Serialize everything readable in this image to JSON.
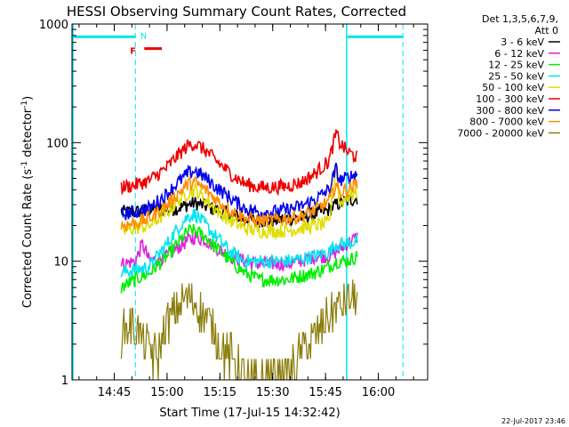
{
  "chart_data": {
    "type": "line",
    "title": "HESSI Observing Summary Count Rates, Corrected",
    "xlabel": "Start Time (17-Jul-15 14:32:42)",
    "ylabel_main": "Corrected Count Rate (s",
    "ylabel_sup1": "-1",
    "ylabel_mid": " detector",
    "ylabel_sup2": "-1",
    "ylabel_end": ")",
    "yscale": "log",
    "xlim": [
      "14:33",
      "16:14"
    ],
    "ylim": [
      1,
      1000
    ],
    "xticks": [
      "14:45",
      "15:00",
      "15:15",
      "15:30",
      "15:45",
      "16:00"
    ],
    "yticks": [
      "1",
      "10",
      "100",
      "1000"
    ],
    "legend_header": [
      "Det 1,3,5,6,7,9,",
      "Att 0"
    ],
    "legend_position": "right",
    "timestamp": "22-Jul-2017 23:46",
    "annotations": {
      "night_label": "N",
      "flag_label": "F",
      "night_intervals": [
        [
          "14:33",
          "14:51"
        ],
        [
          "15:51",
          "16:07"
        ]
      ],
      "night_level": 780,
      "flag_intervals": [
        [
          "14:52",
          "14:57"
        ]
      ],
      "flag_level": 620,
      "cyan_solid_markers": [
        "14:33",
        "15:51"
      ],
      "cyan_dashed_markers": [
        "14:51",
        "16:07"
      ]
    },
    "data_range": [
      "14:47",
      "15:54"
    ],
    "series": [
      {
        "name": "3 - 6 keV",
        "color": "#000000",
        "points": [
          [
            "14:47",
            26
          ],
          [
            "14:51",
            26
          ],
          [
            "14:55",
            27
          ],
          [
            "15:00",
            27
          ],
          [
            "15:03",
            28
          ],
          [
            "15:06",
            30
          ],
          [
            "15:08",
            31
          ],
          [
            "15:11",
            29
          ],
          [
            "15:14",
            27
          ],
          [
            "15:18",
            25
          ],
          [
            "15:22",
            23
          ],
          [
            "15:26",
            22
          ],
          [
            "15:30",
            22
          ],
          [
            "15:34",
            23
          ],
          [
            "15:38",
            23
          ],
          [
            "15:42",
            25
          ],
          [
            "15:46",
            27
          ],
          [
            "15:48",
            30
          ],
          [
            "15:51",
            32
          ],
          [
            "15:54",
            34
          ]
        ]
      },
      {
        "name": "6 - 12 keV",
        "color": "#e020e0",
        "points": [
          [
            "14:47",
            9.5
          ],
          [
            "14:51",
            10
          ],
          [
            "14:53",
            14
          ],
          [
            "14:55",
            10
          ],
          [
            "15:00",
            11
          ],
          [
            "15:03",
            13
          ],
          [
            "15:06",
            15
          ],
          [
            "15:08",
            16
          ],
          [
            "15:11",
            15
          ],
          [
            "15:14",
            13
          ],
          [
            "15:18",
            11
          ],
          [
            "15:22",
            10
          ],
          [
            "15:26",
            9.5
          ],
          [
            "15:30",
            9.5
          ],
          [
            "15:34",
            9.5
          ],
          [
            "15:38",
            10
          ],
          [
            "15:42",
            11
          ],
          [
            "15:46",
            11
          ],
          [
            "15:48",
            12
          ],
          [
            "15:51",
            14
          ],
          [
            "15:54",
            16
          ]
        ]
      },
      {
        "name": "12 - 25 keV",
        "color": "#00ee00",
        "points": [
          [
            "14:47",
            6
          ],
          [
            "14:51",
            7
          ],
          [
            "14:55",
            8
          ],
          [
            "15:00",
            11
          ],
          [
            "15:03",
            14
          ],
          [
            "15:06",
            18
          ],
          [
            "15:08",
            18
          ],
          [
            "15:11",
            16
          ],
          [
            "15:14",
            13
          ],
          [
            "15:18",
            10
          ],
          [
            "15:22",
            8
          ],
          [
            "15:26",
            7
          ],
          [
            "15:30",
            7
          ],
          [
            "15:34",
            7
          ],
          [
            "15:38",
            7.5
          ],
          [
            "15:42",
            8
          ],
          [
            "15:46",
            9
          ],
          [
            "15:48",
            10
          ],
          [
            "15:51",
            10
          ],
          [
            "15:54",
            11
          ]
        ]
      },
      {
        "name": "25 - 50 keV",
        "color": "#00e5ee",
        "points": [
          [
            "14:47",
            8
          ],
          [
            "14:51",
            8.5
          ],
          [
            "14:55",
            9
          ],
          [
            "15:00",
            14
          ],
          [
            "15:03",
            19
          ],
          [
            "15:06",
            24
          ],
          [
            "15:08",
            25
          ],
          [
            "15:11",
            20
          ],
          [
            "15:14",
            16
          ],
          [
            "15:18",
            12
          ],
          [
            "15:22",
            10
          ],
          [
            "15:26",
            10
          ],
          [
            "15:30",
            10
          ],
          [
            "15:34",
            10
          ],
          [
            "15:38",
            10.5
          ],
          [
            "15:42",
            11
          ],
          [
            "15:46",
            12
          ],
          [
            "15:48",
            14
          ],
          [
            "15:51",
            14
          ],
          [
            "15:54",
            15
          ]
        ]
      },
      {
        "name": "50 - 100 keV",
        "color": "#dede00",
        "points": [
          [
            "14:47",
            18
          ],
          [
            "14:51",
            19
          ],
          [
            "14:55",
            20
          ],
          [
            "15:00",
            26
          ],
          [
            "15:03",
            32
          ],
          [
            "15:06",
            38
          ],
          [
            "15:08",
            40
          ],
          [
            "15:11",
            33
          ],
          [
            "15:14",
            27
          ],
          [
            "15:18",
            22
          ],
          [
            "15:22",
            19
          ],
          [
            "15:26",
            18
          ],
          [
            "15:30",
            18
          ],
          [
            "15:34",
            18
          ],
          [
            "15:38",
            19
          ],
          [
            "15:42",
            20
          ],
          [
            "15:46",
            21
          ],
          [
            "15:48",
            65
          ],
          [
            "15:49",
            30
          ],
          [
            "15:51",
            35
          ],
          [
            "15:54",
            38
          ]
        ]
      },
      {
        "name": "100 - 300 keV",
        "color": "#ee0000",
        "points": [
          [
            "14:47",
            42
          ],
          [
            "14:51",
            44
          ],
          [
            "14:55",
            48
          ],
          [
            "15:00",
            62
          ],
          [
            "15:03",
            78
          ],
          [
            "15:06",
            95
          ],
          [
            "15:08",
            98
          ],
          [
            "15:11",
            85
          ],
          [
            "15:14",
            70
          ],
          [
            "15:18",
            55
          ],
          [
            "15:22",
            45
          ],
          [
            "15:26",
            42
          ],
          [
            "15:30",
            42
          ],
          [
            "15:34",
            43
          ],
          [
            "15:38",
            46
          ],
          [
            "15:42",
            55
          ],
          [
            "15:46",
            70
          ],
          [
            "15:48",
            120
          ],
          [
            "15:49",
            100
          ],
          [
            "15:51",
            85
          ],
          [
            "15:54",
            75
          ]
        ]
      },
      {
        "name": "300 - 800 keV",
        "color": "#0000ee",
        "points": [
          [
            "14:47",
            25
          ],
          [
            "14:51",
            26
          ],
          [
            "14:55",
            28
          ],
          [
            "15:00",
            37
          ],
          [
            "15:03",
            46
          ],
          [
            "15:06",
            55
          ],
          [
            "15:08",
            58
          ],
          [
            "15:11",
            50
          ],
          [
            "15:14",
            42
          ],
          [
            "15:18",
            34
          ],
          [
            "15:22",
            28
          ],
          [
            "15:26",
            26
          ],
          [
            "15:30",
            26
          ],
          [
            "15:34",
            27
          ],
          [
            "15:38",
            29
          ],
          [
            "15:42",
            33
          ],
          [
            "15:46",
            40
          ],
          [
            "15:48",
            60
          ],
          [
            "15:49",
            48
          ],
          [
            "15:51",
            50
          ],
          [
            "15:54",
            55
          ]
        ]
      },
      {
        "name": "800 - 7000 keV",
        "color": "#ff8c00",
        "points": [
          [
            "14:47",
            20
          ],
          [
            "14:51",
            21
          ],
          [
            "14:55",
            23
          ],
          [
            "15:00",
            30
          ],
          [
            "15:03",
            37
          ],
          [
            "15:06",
            45
          ],
          [
            "15:08",
            46
          ],
          [
            "15:11",
            40
          ],
          [
            "15:14",
            33
          ],
          [
            "15:18",
            27
          ],
          [
            "15:22",
            23
          ],
          [
            "15:26",
            22
          ],
          [
            "15:30",
            22
          ],
          [
            "15:34",
            23
          ],
          [
            "15:38",
            24
          ],
          [
            "15:42",
            27
          ],
          [
            "15:46",
            32
          ],
          [
            "15:48",
            45
          ],
          [
            "15:49",
            38
          ],
          [
            "15:51",
            40
          ],
          [
            "15:54",
            45
          ]
        ]
      },
      {
        "name": "7000 - 20000 keV",
        "color": "#8b7d0b",
        "points": [
          [
            "14:47",
            2.5
          ],
          [
            "14:50",
            3
          ],
          [
            "14:53",
            2.2
          ],
          [
            "14:57",
            1.5
          ],
          [
            "15:00",
            3
          ],
          [
            "15:03",
            4
          ],
          [
            "15:05",
            5
          ],
          [
            "15:08",
            4.5
          ],
          [
            "15:12",
            3
          ],
          [
            "15:15",
            2
          ],
          [
            "15:18",
            1.6
          ],
          [
            "15:22",
            1
          ],
          [
            "15:26",
            1
          ],
          [
            "15:30",
            1
          ],
          [
            "15:34",
            1
          ],
          [
            "15:37",
            1.5
          ],
          [
            "15:40",
            2
          ],
          [
            "15:43",
            2.5
          ],
          [
            "15:46",
            3.5
          ],
          [
            "15:48",
            4
          ],
          [
            "15:51",
            4.5
          ],
          [
            "15:54",
            5
          ]
        ]
      }
    ]
  }
}
